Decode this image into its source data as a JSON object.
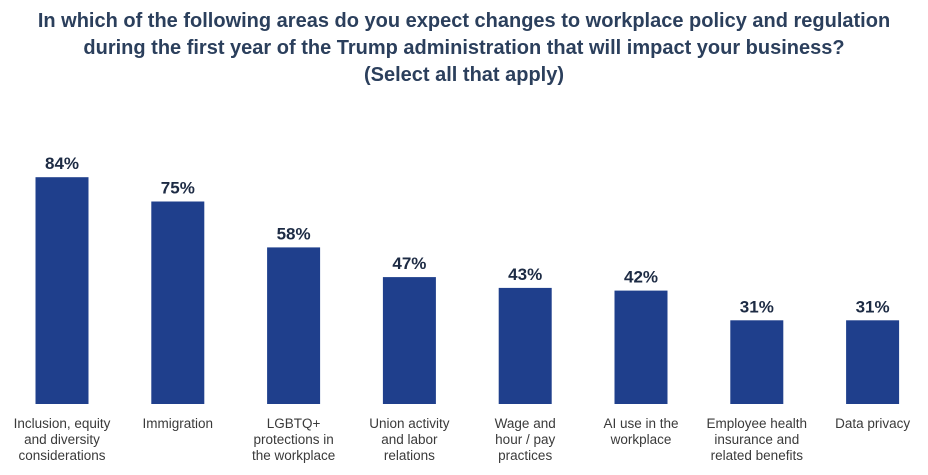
{
  "title_lines": [
    "In which of the following areas do you expect changes to workplace policy and regulation",
    "during the first year of the Trump administration that will impact your business?",
    "(Select all that apply)"
  ],
  "colors": {
    "bar": "#1f3f8c",
    "title": "#2b3f5c",
    "value_label": "#1d2b44",
    "category_label": "#3a3a3a"
  },
  "chart_data": {
    "type": "bar",
    "title": "In which of the following areas do you expect changes to workplace policy and regulation during the first year of the Trump administration that will impact your business? (Select all that apply)",
    "categories": [
      [
        "Inclusion, equity",
        "and diversity",
        "considerations"
      ],
      [
        "Immigration"
      ],
      [
        "LGBTQ+",
        "protections in",
        "the workplace"
      ],
      [
        "Union activity",
        "and labor",
        "relations"
      ],
      [
        "Wage and",
        "hour / pay",
        "practices"
      ],
      [
        "AI use in the",
        "workplace"
      ],
      [
        "Employee health",
        "insurance and",
        "related benefits"
      ],
      [
        "Data privacy"
      ]
    ],
    "values": [
      84,
      75,
      58,
      47,
      43,
      42,
      31,
      31
    ],
    "value_labels": [
      "84%",
      "75%",
      "58%",
      "47%",
      "43%",
      "42%",
      "31%",
      "31%"
    ],
    "unit": "%",
    "ylim": [
      0,
      100
    ],
    "grid": false,
    "legend": "none",
    "xlabel": "",
    "ylabel": ""
  }
}
